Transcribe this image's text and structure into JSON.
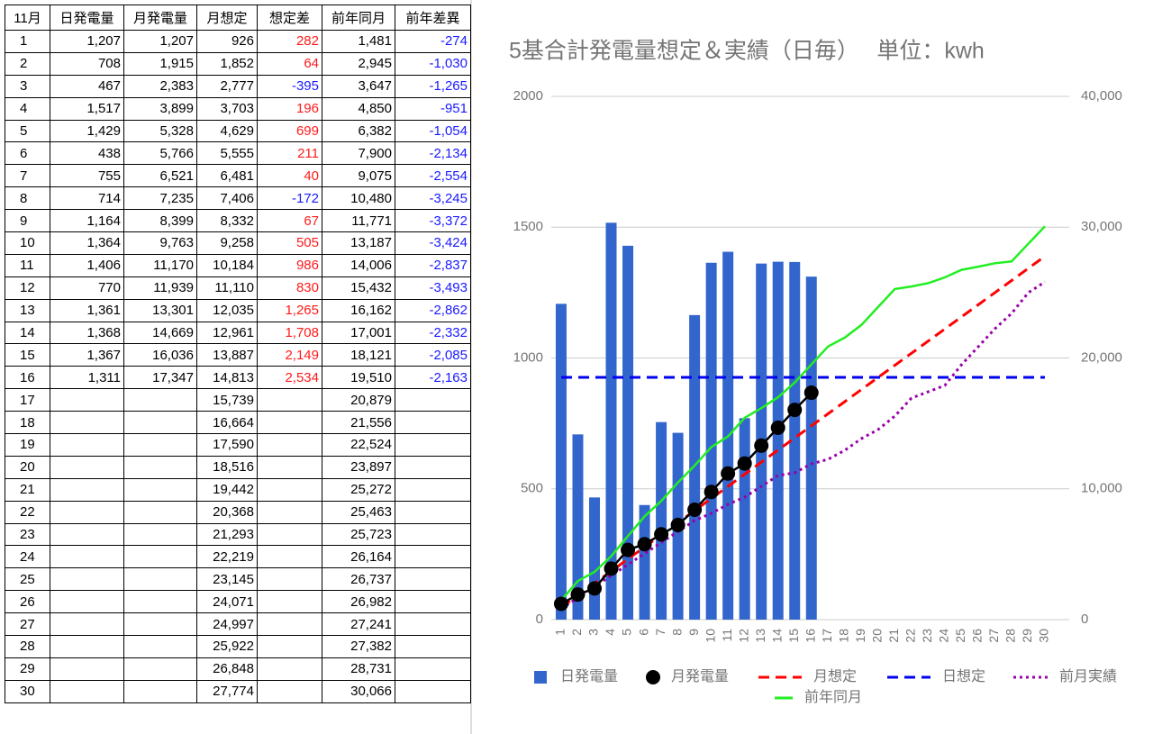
{
  "table": {
    "header": [
      "11月",
      "日発電量",
      "月発電量",
      "月想定",
      "想定差",
      "前年同月",
      "前年差異"
    ],
    "rows": [
      [
        "1",
        "1,207",
        "1,207",
        "926",
        "282",
        "1,481",
        "-274"
      ],
      [
        "2",
        "708",
        "1,915",
        "1,852",
        "64",
        "2,945",
        "-1,030"
      ],
      [
        "3",
        "467",
        "2,383",
        "2,777",
        "-395",
        "3,647",
        "-1,265"
      ],
      [
        "4",
        "1,517",
        "3,899",
        "3,703",
        "196",
        "4,850",
        "-951"
      ],
      [
        "5",
        "1,429",
        "5,328",
        "4,629",
        "699",
        "6,382",
        "-1,054"
      ],
      [
        "6",
        "438",
        "5,766",
        "5,555",
        "211",
        "7,900",
        "-2,134"
      ],
      [
        "7",
        "755",
        "6,521",
        "6,481",
        "40",
        "9,075",
        "-2,554"
      ],
      [
        "8",
        "714",
        "7,235",
        "7,406",
        "-172",
        "10,480",
        "-3,245"
      ],
      [
        "9",
        "1,164",
        "8,399",
        "8,332",
        "67",
        "11,771",
        "-3,372"
      ],
      [
        "10",
        "1,364",
        "9,763",
        "9,258",
        "505",
        "13,187",
        "-3,424"
      ],
      [
        "11",
        "1,406",
        "11,170",
        "10,184",
        "986",
        "14,006",
        "-2,837"
      ],
      [
        "12",
        "770",
        "11,939",
        "11,110",
        "830",
        "15,432",
        "-3,493"
      ],
      [
        "13",
        "1,361",
        "13,301",
        "12,035",
        "1,265",
        "16,162",
        "-2,862"
      ],
      [
        "14",
        "1,368",
        "14,669",
        "12,961",
        "1,708",
        "17,001",
        "-2,332"
      ],
      [
        "15",
        "1,367",
        "16,036",
        "13,887",
        "2,149",
        "18,121",
        "-2,085"
      ],
      [
        "16",
        "1,311",
        "17,347",
        "14,813",
        "2,534",
        "19,510",
        "-2,163"
      ],
      [
        "17",
        "",
        "",
        "15,739",
        "",
        "20,879",
        ""
      ],
      [
        "18",
        "",
        "",
        "16,664",
        "",
        "21,556",
        ""
      ],
      [
        "19",
        "",
        "",
        "17,590",
        "",
        "22,524",
        ""
      ],
      [
        "20",
        "",
        "",
        "18,516",
        "",
        "23,897",
        ""
      ],
      [
        "21",
        "",
        "",
        "19,442",
        "",
        "25,272",
        ""
      ],
      [
        "22",
        "",
        "",
        "20,368",
        "",
        "25,463",
        ""
      ],
      [
        "23",
        "",
        "",
        "21,293",
        "",
        "25,723",
        ""
      ],
      [
        "24",
        "",
        "",
        "22,219",
        "",
        "26,164",
        ""
      ],
      [
        "25",
        "",
        "",
        "23,145",
        "",
        "26,737",
        ""
      ],
      [
        "26",
        "",
        "",
        "24,071",
        "",
        "26,982",
        ""
      ],
      [
        "27",
        "",
        "",
        "24,997",
        "",
        "27,241",
        ""
      ],
      [
        "28",
        "",
        "",
        "25,922",
        "",
        "27,382",
        ""
      ],
      [
        "29",
        "",
        "",
        "26,848",
        "",
        "28,731",
        ""
      ],
      [
        "30",
        "",
        "",
        "27,774",
        "",
        "30,066",
        ""
      ]
    ]
  },
  "chart_data": {
    "type": "combo",
    "title": "5基合計発電量想定＆実績（日毎）　 単位：kwh",
    "categories": [
      "1",
      "2",
      "3",
      "4",
      "5",
      "6",
      "7",
      "8",
      "9",
      "10",
      "11",
      "12",
      "13",
      "14",
      "15",
      "16",
      "17",
      "18",
      "19",
      "20",
      "21",
      "22",
      "23",
      "24",
      "25",
      "26",
      "27",
      "28",
      "29",
      "30"
    ],
    "ylim": [
      0,
      2000
    ],
    "yticks": [
      0,
      500,
      1000,
      1500,
      2000
    ],
    "y2lim": [
      0,
      40000
    ],
    "y2ticks": [
      0,
      {
        "value": 10000,
        "label": "10,000"
      },
      {
        "value": 20000,
        "label": "20,000"
      },
      {
        "value": 30000,
        "label": "30,000"
      },
      {
        "value": 40000,
        "label": "40,000"
      }
    ],
    "grid": true,
    "legend": "bottom",
    "series": [
      {
        "name": "日発電量",
        "type": "bar",
        "color": "#3366cc",
        "axis": "y",
        "values": [
          1207,
          708,
          467,
          1517,
          1429,
          438,
          755,
          714,
          1164,
          1364,
          1406,
          770,
          1361,
          1368,
          1367,
          1311,
          null,
          null,
          null,
          null,
          null,
          null,
          null,
          null,
          null,
          null,
          null,
          null,
          null,
          null
        ]
      },
      {
        "name": "月発電量",
        "type": "line",
        "color": "#000000",
        "axis": "y2",
        "dash": "solid",
        "marker": "circle",
        "values": [
          1207,
          1915,
          2383,
          3899,
          5328,
          5766,
          6521,
          7235,
          8399,
          9763,
          11170,
          11939,
          13301,
          14669,
          16036,
          17347,
          null,
          null,
          null,
          null,
          null,
          null,
          null,
          null,
          null,
          null,
          null,
          null,
          null,
          null
        ]
      },
      {
        "name": "月想定",
        "type": "line",
        "color": "#ff0000",
        "axis": "y2",
        "dash": "dashed",
        "values": [
          926,
          1852,
          2777,
          3703,
          4629,
          5555,
          6481,
          7406,
          8332,
          9258,
          10184,
          11110,
          12035,
          12961,
          13887,
          14813,
          15739,
          16664,
          17590,
          18516,
          19442,
          20368,
          21293,
          22219,
          23145,
          24071,
          24997,
          25922,
          26848,
          27774
        ]
      },
      {
        "name": "日想定",
        "type": "line",
        "color": "#0000ee",
        "axis": "y",
        "dash": "dashed",
        "values": [
          926,
          926,
          926,
          926,
          926,
          926,
          926,
          926,
          926,
          926,
          926,
          926,
          926,
          926,
          926,
          926,
          926,
          926,
          926,
          926,
          926,
          926,
          926,
          926,
          926,
          926,
          926,
          926,
          926,
          926
        ]
      },
      {
        "name": "前月実績",
        "type": "line",
        "color": "#9900aa",
        "axis": "y2",
        "dash": "dotted",
        "values": [
          841,
          1683,
          2524,
          3366,
          4207,
          5049,
          5890,
          6732,
          7573,
          8124,
          8812,
          9363,
          10190,
          11015,
          11222,
          11910,
          12255,
          12943,
          13838,
          14527,
          15559,
          16936,
          17418,
          17900,
          19484,
          20861,
          22238,
          23408,
          24991,
          25818
        ]
      },
      {
        "name": "前年同月",
        "type": "line",
        "color": "#22ee22",
        "axis": "y2",
        "dash": "solid",
        "values": [
          1481,
          2945,
          3647,
          4850,
          6382,
          7900,
          9075,
          10480,
          11771,
          13187,
          14006,
          15432,
          16162,
          17001,
          18121,
          19510,
          20879,
          21556,
          22524,
          23897,
          25272,
          25463,
          25723,
          26164,
          26737,
          26982,
          27241,
          27382,
          28731,
          30066
        ]
      }
    ]
  }
}
